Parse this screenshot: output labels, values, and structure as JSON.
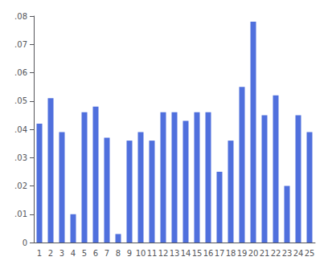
{
  "chart_data": {
    "type": "bar",
    "categories": [
      1,
      2,
      3,
      4,
      5,
      6,
      7,
      8,
      9,
      10,
      11,
      12,
      13,
      14,
      15,
      16,
      17,
      18,
      19,
      20,
      21,
      22,
      23,
      24,
      25
    ],
    "values": [
      0.042,
      0.051,
      0.039,
      0.01,
      0.046,
      0.048,
      0.037,
      0.003,
      0.036,
      0.039,
      0.036,
      0.046,
      0.046,
      0.043,
      0.046,
      0.046,
      0.025,
      0.036,
      0.055,
      0.078,
      0.045,
      0.052,
      0.02,
      0.045,
      0.039
    ],
    "ylim": [
      0,
      0.08
    ],
    "yticks": [
      0,
      {
        "value": 0.01,
        "label": ".01"
      },
      {
        "value": 0.02,
        "label": ".02"
      },
      {
        "value": 0.03,
        "label": ".03"
      },
      {
        "value": 0.04,
        "label": ".04"
      },
      {
        "value": 0.05,
        "label": ".05"
      },
      {
        "value": 0.06,
        "label": ".06"
      },
      {
        "value": 0.07,
        "label": ".07"
      },
      {
        "value": 0.08,
        "label": ".08"
      }
    ],
    "grid": false
  }
}
